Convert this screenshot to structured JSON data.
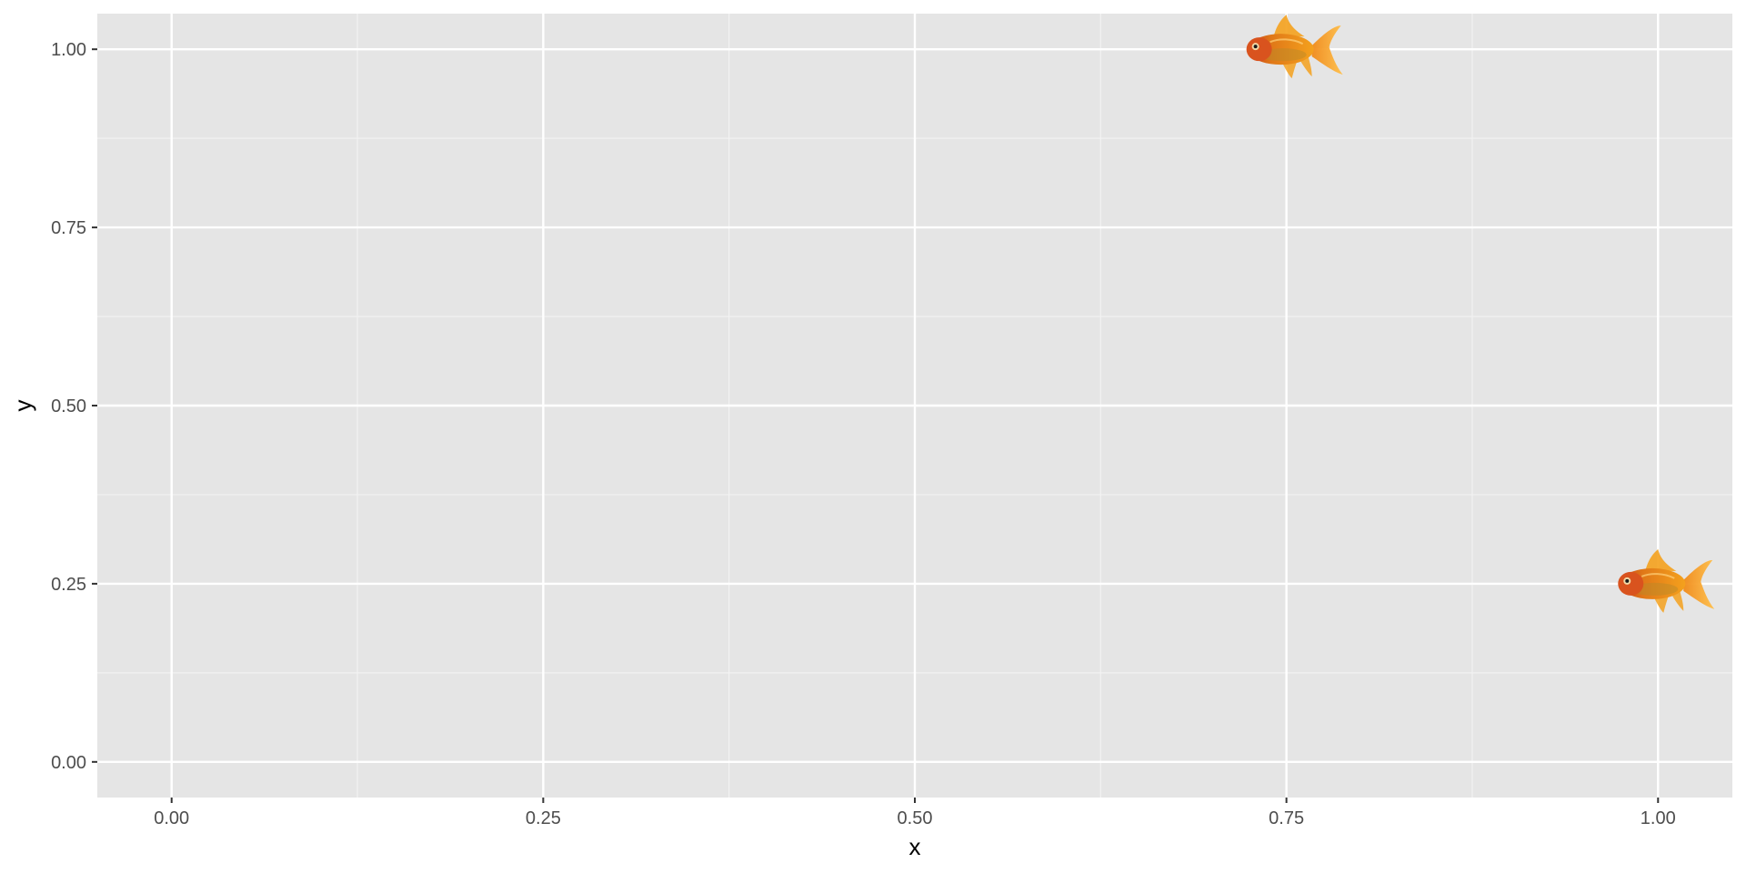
{
  "chart_data": {
    "type": "scatter",
    "title": "",
    "xlabel": "x",
    "ylabel": "y",
    "xlim": [
      -0.05,
      1.05
    ],
    "ylim": [
      -0.05,
      1.05
    ],
    "x_ticks": [
      0,
      0.25,
      0.5,
      0.75,
      1
    ],
    "x_tick_labels": [
      "0.00",
      "0.25",
      "0.50",
      "0.75",
      "1.00"
    ],
    "y_ticks": [
      0,
      0.25,
      0.5,
      0.75,
      1
    ],
    "y_tick_labels": [
      "0.00",
      "0.25",
      "0.50",
      "0.75",
      "1.00"
    ],
    "grid": true,
    "marker": "goldfish-icon",
    "points": [
      {
        "x": 0.75,
        "y": 1.0
      },
      {
        "x": 1.0,
        "y": 0.25
      }
    ]
  },
  "colors": {
    "panel_background": "#e5e5e5",
    "grid_major": "#ffffff",
    "grid_minor": "#f2f2f2",
    "tick_mark": "#333333",
    "tick_label": "#4d4d4d",
    "fish_body": "#e07818",
    "fish_fin": "#f4a11d",
    "fish_head": "#d9531e"
  }
}
